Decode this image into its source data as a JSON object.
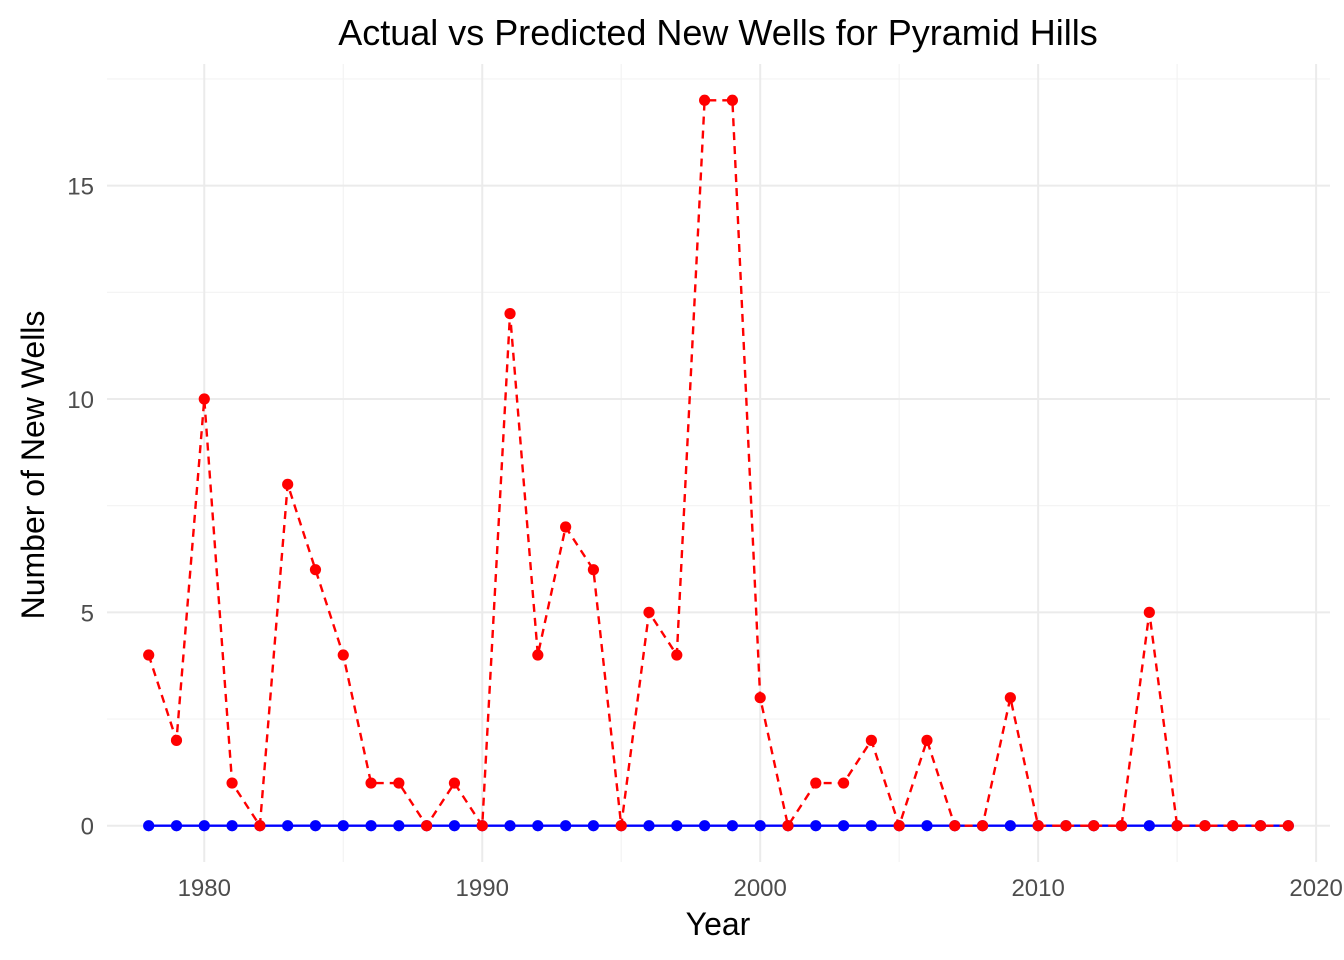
{
  "chart_data": {
    "type": "line",
    "title": "Actual vs Predicted New Wells for Pyramid Hills",
    "xlabel": "Year",
    "ylabel": "Number of New Wells",
    "xlim": [
      1976.5,
      2020.5
    ],
    "ylim": [
      -0.85,
      17.85
    ],
    "x_ticks": [
      1980,
      1990,
      2000,
      2010,
      2020
    ],
    "y_ticks": [
      0,
      5,
      10,
      15
    ],
    "grid": true,
    "legend": "none",
    "x": [
      1978,
      1979,
      1980,
      1981,
      1982,
      1983,
      1984,
      1985,
      1986,
      1987,
      1988,
      1989,
      1990,
      1991,
      1992,
      1993,
      1994,
      1995,
      1996,
      1997,
      1998,
      1999,
      2000,
      2001,
      2002,
      2003,
      2004,
      2005,
      2006,
      2007,
      2008,
      2009,
      2010,
      2011,
      2012,
      2013,
      2014,
      2015,
      2016,
      2017,
      2018,
      2019
    ],
    "series": [
      {
        "color": "#0000ff",
        "line_style": "solid",
        "values": [
          0,
          0,
          0,
          0,
          0,
          0,
          0,
          0,
          0,
          0,
          0,
          0,
          0,
          0,
          0,
          0,
          0,
          0,
          0,
          0,
          0,
          0,
          0,
          0,
          0,
          0,
          0,
          0,
          0,
          0,
          0,
          0,
          0,
          0,
          0,
          0,
          0,
          0,
          0,
          0,
          0,
          0
        ]
      },
      {
        "color": "#ff0000",
        "line_style": "dashed",
        "values": [
          4,
          2,
          10,
          1,
          0,
          8,
          6,
          4,
          1,
          1,
          0,
          1,
          0,
          12,
          4,
          7,
          6,
          0,
          5,
          4,
          17,
          17,
          3,
          0,
          1,
          1,
          2,
          0,
          2,
          0,
          0,
          3,
          0,
          0,
          0,
          0,
          5,
          0,
          0,
          0,
          0,
          0
        ]
      }
    ]
  }
}
